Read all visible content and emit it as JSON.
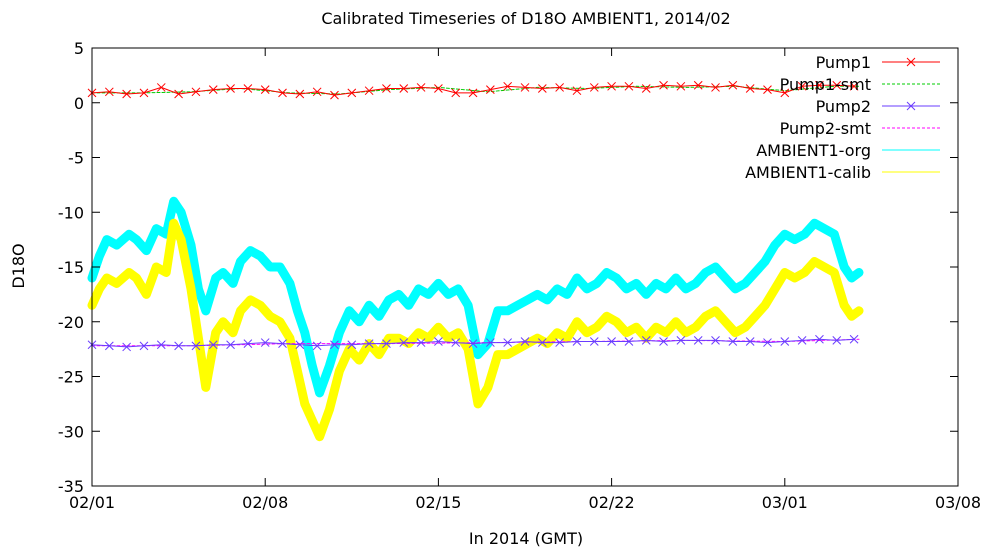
{
  "chart_data": {
    "type": "line",
    "title": "Calibrated Timeseries of D18O AMBIENT1, 2014/02",
    "xlabel": "In 2014 (GMT)",
    "ylabel": "D18O",
    "x_tick_labels": [
      "02/01",
      "02/08",
      "02/15",
      "02/22",
      "03/01",
      "03/08"
    ],
    "xlim": [
      0,
      35
    ],
    "ylim": [
      -35,
      5
    ],
    "y_ticks": [
      5,
      0,
      -5,
      -10,
      -15,
      -20,
      -25,
      -30,
      -35
    ],
    "grid": false,
    "legend_position": "top-right",
    "series": [
      {
        "name": "Pump1",
        "color": "#ff0000",
        "marker": "x",
        "x": [
          0,
          0.7,
          1.4,
          2.1,
          2.8,
          3.5,
          4.2,
          4.9,
          5.6,
          6.3,
          7.0,
          7.7,
          8.4,
          9.1,
          9.8,
          10.5,
          11.2,
          11.9,
          12.6,
          13.3,
          14.0,
          14.7,
          15.4,
          16.1,
          16.8,
          17.5,
          18.2,
          18.9,
          19.6,
          20.3,
          21.0,
          21.7,
          22.4,
          23.1,
          23.8,
          24.5,
          25.2,
          25.9,
          26.6,
          27.3,
          28.0,
          28.7,
          29.4,
          30.1,
          30.8
        ],
        "y": [
          0.9,
          1.0,
          0.8,
          0.9,
          1.4,
          0.8,
          1.0,
          1.2,
          1.3,
          1.3,
          1.2,
          0.9,
          0.8,
          1.0,
          0.7,
          0.9,
          1.1,
          1.3,
          1.3,
          1.4,
          1.3,
          0.9,
          0.9,
          1.2,
          1.5,
          1.4,
          1.3,
          1.4,
          1.1,
          1.4,
          1.5,
          1.5,
          1.3,
          1.6,
          1.5,
          1.6,
          1.4,
          1.6,
          1.3,
          1.2,
          0.9,
          1.5,
          1.6,
          1.6,
          1.5
        ]
      },
      {
        "name": "Pump1-smt",
        "color": "#00cc00",
        "x": [
          0,
          2,
          4,
          6,
          8,
          10,
          12,
          14,
          16,
          18,
          20,
          22,
          24,
          26,
          28,
          30,
          31
        ],
        "y": [
          0.9,
          0.9,
          1.0,
          1.3,
          0.9,
          0.8,
          1.2,
          1.4,
          1.0,
          1.4,
          1.3,
          1.5,
          1.4,
          1.5,
          1.1,
          1.5,
          1.5
        ]
      },
      {
        "name": "Pump2",
        "color": "#6a3cff",
        "marker": "x",
        "x": [
          0,
          0.7,
          1.4,
          2.1,
          2.8,
          3.5,
          4.2,
          4.9,
          5.6,
          6.3,
          7.0,
          7.7,
          8.4,
          9.1,
          9.8,
          10.5,
          11.2,
          11.9,
          12.6,
          13.3,
          14.0,
          14.7,
          15.4,
          16.1,
          16.8,
          17.5,
          18.2,
          18.9,
          19.6,
          20.3,
          21.0,
          21.7,
          22.4,
          23.1,
          23.8,
          24.5,
          25.2,
          25.9,
          26.6,
          27.3,
          28.0,
          28.7,
          29.4,
          30.1,
          30.8
        ],
        "y": [
          -22.1,
          -22.2,
          -22.3,
          -22.2,
          -22.1,
          -22.2,
          -22.2,
          -22.1,
          -22.1,
          -22.0,
          -21.9,
          -22.0,
          -22.1,
          -22.2,
          -22.1,
          -22.1,
          -22.0,
          -22.0,
          -21.9,
          -21.9,
          -21.8,
          -21.9,
          -22.0,
          -21.9,
          -21.9,
          -21.8,
          -21.9,
          -21.9,
          -21.8,
          -21.8,
          -21.8,
          -21.8,
          -21.7,
          -21.8,
          -21.7,
          -21.7,
          -21.7,
          -21.8,
          -21.8,
          -21.9,
          -21.8,
          -21.7,
          -21.6,
          -21.7,
          -21.6
        ]
      },
      {
        "name": "Pump2-smt",
        "color": "#ff00ff",
        "x": [
          0,
          4,
          8,
          12,
          16,
          20,
          24,
          28,
          31
        ],
        "y": [
          -22.2,
          -22.2,
          -22.0,
          -22.0,
          -21.9,
          -21.8,
          -21.7,
          -21.8,
          -21.6
        ]
      },
      {
        "name": "AMBIENT1-org",
        "color": "#00ffff",
        "x": [
          0,
          0.3,
          0.6,
          1.0,
          1.5,
          1.8,
          2.2,
          2.6,
          3.0,
          3.3,
          3.6,
          4.0,
          4.3,
          4.6,
          5.0,
          5.3,
          5.7,
          6.0,
          6.4,
          6.8,
          7.2,
          7.6,
          8.0,
          8.3,
          8.6,
          8.9,
          9.2,
          9.6,
          10.0,
          10.4,
          10.8,
          11.2,
          11.6,
          12.0,
          12.4,
          12.8,
          13.2,
          13.6,
          14.0,
          14.4,
          14.8,
          15.2,
          15.6,
          16.0,
          16.4,
          16.8,
          17.2,
          17.6,
          18.0,
          18.4,
          18.8,
          19.2,
          19.6,
          20.0,
          20.4,
          20.8,
          21.2,
          21.6,
          22.0,
          22.4,
          22.8,
          23.2,
          23.6,
          24.0,
          24.4,
          24.8,
          25.2,
          25.6,
          26.0,
          26.4,
          26.8,
          27.2,
          27.6,
          28.0,
          28.4,
          28.8,
          29.2,
          29.6,
          30.0,
          30.4,
          30.7,
          31.0
        ],
        "y": [
          -16.0,
          -14.0,
          -12.5,
          -13.0,
          -12.0,
          -12.5,
          -13.5,
          -11.5,
          -12.0,
          -9.0,
          -10.0,
          -13.0,
          -17.0,
          -19.0,
          -16.0,
          -15.5,
          -16.5,
          -14.5,
          -13.5,
          -14.0,
          -15.0,
          -15.0,
          -16.5,
          -19.0,
          -21.0,
          -24.0,
          -26.5,
          -24.0,
          -21.0,
          -19.0,
          -20.0,
          -18.5,
          -19.5,
          -18.0,
          -17.5,
          -18.5,
          -17.0,
          -17.5,
          -16.5,
          -17.5,
          -17.0,
          -18.5,
          -23.0,
          -22.0,
          -19.0,
          -19.0,
          -18.5,
          -18.0,
          -17.5,
          -18.0,
          -17.0,
          -17.5,
          -16.0,
          -17.0,
          -16.5,
          -15.5,
          -16.0,
          -17.0,
          -16.5,
          -17.5,
          -16.5,
          -17.0,
          -16.0,
          -17.0,
          -16.5,
          -15.5,
          -15.0,
          -16.0,
          -17.0,
          -16.5,
          -15.5,
          -14.5,
          -13.0,
          -12.0,
          -12.5,
          -12.0,
          -11.0,
          -11.5,
          -12.0,
          -15.0,
          -16.0,
          -15.5
        ]
      },
      {
        "name": "AMBIENT1-calib",
        "color": "#ffff00",
        "x": [
          0,
          0.3,
          0.6,
          1.0,
          1.5,
          1.8,
          2.2,
          2.6,
          3.0,
          3.3,
          3.6,
          4.0,
          4.3,
          4.6,
          5.0,
          5.3,
          5.7,
          6.0,
          6.4,
          6.8,
          7.2,
          7.6,
          8.0,
          8.3,
          8.6,
          8.9,
          9.2,
          9.6,
          10.0,
          10.4,
          10.8,
          11.2,
          11.6,
          12.0,
          12.4,
          12.8,
          13.2,
          13.6,
          14.0,
          14.4,
          14.8,
          15.2,
          15.6,
          16.0,
          16.4,
          16.8,
          17.2,
          17.6,
          18.0,
          18.4,
          18.8,
          19.2,
          19.6,
          20.0,
          20.4,
          20.8,
          21.2,
          21.6,
          22.0,
          22.4,
          22.8,
          23.2,
          23.6,
          24.0,
          24.4,
          24.8,
          25.2,
          25.6,
          26.0,
          26.4,
          26.8,
          27.2,
          27.6,
          28.0,
          28.4,
          28.8,
          29.2,
          29.6,
          30.0,
          30.4,
          30.7,
          31.0
        ],
        "y": [
          -18.5,
          -17.0,
          -16.0,
          -16.5,
          -15.5,
          -16.0,
          -17.5,
          -15.0,
          -15.5,
          -11.0,
          -12.5,
          -17.0,
          -21.5,
          -26.0,
          -21.0,
          -20.0,
          -21.0,
          -19.0,
          -18.0,
          -18.5,
          -19.5,
          -20.0,
          -21.5,
          -24.5,
          -27.5,
          -29.0,
          -30.5,
          -28.0,
          -24.5,
          -22.5,
          -23.5,
          -22.0,
          -23.0,
          -21.5,
          -21.5,
          -22.0,
          -21.0,
          -21.5,
          -20.5,
          -21.5,
          -21.0,
          -22.5,
          -27.5,
          -26.0,
          -23.0,
          -23.0,
          -22.5,
          -22.0,
          -21.5,
          -22.0,
          -21.0,
          -21.5,
          -20.0,
          -21.0,
          -20.5,
          -19.5,
          -20.0,
          -21.0,
          -20.5,
          -21.5,
          -20.5,
          -21.0,
          -20.0,
          -21.0,
          -20.5,
          -19.5,
          -19.0,
          -20.0,
          -21.0,
          -20.5,
          -19.5,
          -18.5,
          -17.0,
          -15.5,
          -16.0,
          -15.5,
          -14.5,
          -15.0,
          -15.5,
          -18.5,
          -19.5,
          -19.0
        ]
      }
    ]
  }
}
